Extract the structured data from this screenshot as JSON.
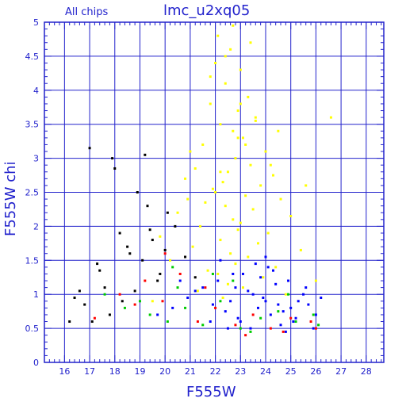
{
  "chart_data": {
    "type": "scatter",
    "title": "lmc_u2xq05",
    "subtitle": "All chips",
    "xlabel": "F555W",
    "ylabel": "F555W chi",
    "xlim": [
      15.2,
      28.7
    ],
    "ylim": [
      0,
      5
    ],
    "x_ticks": [
      "16",
      "17",
      "18",
      "19",
      "20",
      "21",
      "22",
      "23",
      "24",
      "25",
      "26",
      "27",
      "28"
    ],
    "y_ticks": [
      "0",
      "0.5",
      "1",
      "1.5",
      "2",
      "2.5",
      "3",
      "3.5",
      "4",
      "4.5",
      "5"
    ],
    "grid": true,
    "colors": {
      "axis": "#2222cc",
      "grid": "#2222cc",
      "yellow": "#ffff00",
      "blue": "#0000ff",
      "green": "#00cc00",
      "red": "#ff0000",
      "black": "#000000"
    },
    "series": [
      {
        "color": "yellow",
        "x": [
          22.1,
          22.6,
          23.0,
          22.4,
          23.3,
          21.8,
          22.9,
          23.6,
          22.2,
          22.7,
          23.1,
          21.5,
          24.0,
          22.8,
          23.4,
          21.2,
          22.5,
          24.3,
          20.8,
          22.3,
          23.8,
          21.9,
          22.0,
          23.2,
          24.6,
          21.6,
          22.4,
          23.5,
          20.5,
          25.0,
          22.7,
          23.0,
          21.4,
          22.9,
          24.1,
          19.8,
          22.2,
          23.7,
          21.1,
          25.4,
          22.6,
          23.3,
          20.2,
          22.8,
          24.4,
          21.7,
          22.1,
          23.9,
          26.0,
          22.5,
          23.1,
          21.3,
          24.8,
          22.3,
          19.5,
          23.6,
          22.0,
          24.2,
          21.0,
          22.7,
          23.4,
          25.6,
          22.9,
          20.9,
          23.0,
          21.8,
          24.5,
          22.4,
          26.6,
          22.2,
          23.2
        ],
        "y": [
          4.8,
          4.6,
          4.3,
          4.1,
          3.9,
          3.8,
          3.7,
          3.6,
          3.5,
          3.4,
          3.3,
          3.2,
          3.1,
          3.0,
          2.9,
          2.85,
          2.8,
          2.75,
          2.7,
          2.65,
          2.6,
          2.55,
          2.5,
          2.45,
          2.4,
          2.35,
          2.3,
          2.25,
          2.2,
          2.15,
          2.1,
          2.05,
          2.0,
          1.95,
          1.9,
          1.85,
          1.8,
          1.75,
          1.7,
          1.65,
          1.6,
          1.55,
          1.5,
          1.45,
          1.4,
          1.35,
          1.3,
          1.25,
          1.2,
          1.15,
          1.1,
          1.05,
          1.0,
          0.95,
          0.9,
          3.55,
          4.4,
          2.9,
          3.1,
          4.95,
          4.7,
          2.6,
          3.3,
          2.4,
          3.8,
          4.2,
          3.4,
          4.5,
          3.6,
          2.8,
          3.2
        ]
      },
      {
        "color": "blue",
        "x": [
          24.0,
          24.5,
          23.5,
          25.0,
          22.8,
          23.9,
          24.7,
          25.3,
          22.1,
          23.3,
          24.2,
          25.7,
          21.5,
          22.9,
          23.7,
          24.4,
          25.1,
          26.0,
          20.9,
          22.4,
          23.1,
          23.8,
          24.6,
          25.5,
          21.8,
          22.6,
          24.1,
          25.9,
          20.3,
          23.4,
          24.9,
          19.7,
          22.2,
          23.6,
          24.3,
          25.2,
          21.2,
          22.7,
          25.6,
          24.8,
          23.0,
          21.9,
          26.2,
          24.0,
          22.5,
          20.6
        ],
        "y": [
          0.9,
          0.85,
          1.0,
          0.8,
          1.1,
          0.95,
          0.75,
          0.9,
          1.2,
          1.05,
          0.7,
          0.85,
          1.1,
          0.65,
          0.8,
          1.15,
          0.6,
          0.7,
          0.95,
          0.75,
          1.3,
          1.25,
          0.55,
          1.0,
          0.6,
          0.9,
          1.4,
          0.5,
          0.8,
          0.5,
          1.2,
          0.7,
          1.5,
          1.45,
          1.35,
          0.65,
          1.05,
          1.3,
          1.1,
          0.45,
          0.6,
          0.85,
          0.95,
          1.55,
          0.5,
          1.2
        ]
      },
      {
        "color": "green",
        "x": [
          19.4,
          20.1,
          20.8,
          21.5,
          22.2,
          23.0,
          23.8,
          24.5,
          25.2,
          25.9,
          19.0,
          20.5,
          21.9,
          23.4,
          24.9,
          26.1,
          18.4,
          17.6,
          20.3,
          22.7
        ],
        "y": [
          0.7,
          0.6,
          0.8,
          0.55,
          0.9,
          0.5,
          0.65,
          0.75,
          0.6,
          0.7,
          0.9,
          1.1,
          1.3,
          0.45,
          1.0,
          0.55,
          0.8,
          1.0,
          1.4,
          1.2
        ]
      },
      {
        "color": "red",
        "x": [
          19.2,
          19.9,
          20.6,
          21.3,
          22.0,
          22.8,
          23.5,
          24.2,
          25.0,
          25.8,
          18.8,
          20.0,
          21.6,
          23.2,
          24.7,
          26.0,
          18.2,
          17.2
        ],
        "y": [
          1.2,
          0.9,
          1.3,
          0.6,
          0.8,
          0.55,
          0.7,
          0.5,
          0.65,
          0.6,
          0.85,
          1.6,
          1.1,
          0.4,
          0.45,
          0.5,
          1.0,
          0.65
        ]
      },
      {
        "color": "black",
        "x": [
          16.4,
          16.8,
          17.0,
          17.3,
          17.6,
          18.0,
          18.3,
          18.6,
          18.9,
          19.2,
          19.5,
          19.8,
          20.1,
          20.4,
          20.8,
          21.2,
          17.1,
          17.4,
          17.8,
          18.2,
          18.5,
          18.8,
          19.1,
          19.4,
          19.7,
          20.0,
          16.6,
          16.2,
          17.9,
          19.3
        ],
        "y": [
          0.95,
          0.85,
          3.15,
          1.45,
          1.1,
          2.85,
          0.9,
          1.6,
          2.5,
          3.05,
          1.8,
          1.3,
          2.2,
          2.0,
          1.55,
          1.25,
          0.6,
          1.35,
          0.7,
          1.9,
          1.7,
          1.05,
          1.5,
          1.95,
          1.2,
          1.65,
          1.05,
          0.6,
          3.0,
          2.3
        ]
      }
    ]
  }
}
